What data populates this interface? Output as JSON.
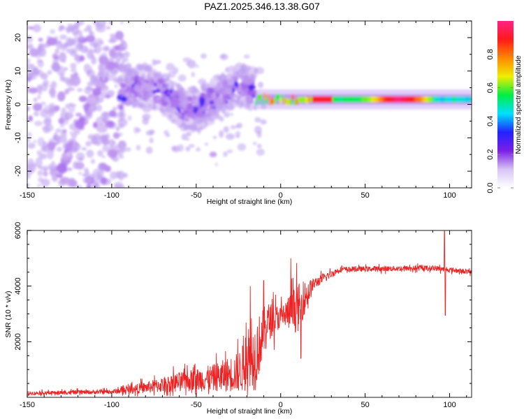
{
  "title": "PAZ1.2025.346.13.38.G07",
  "chart_data": [
    {
      "type": "heatmap",
      "name": "spectrogram",
      "xlabel": "Height of straight line (km)",
      "ylabel": "Frequency (Hz)",
      "xlim": [
        -150,
        113
      ],
      "ylim": [
        -25,
        25
      ],
      "x_ticks": [
        -150,
        -100,
        -50,
        0,
        50,
        100
      ],
      "y_ticks": [
        -20,
        -10,
        0,
        10,
        20
      ],
      "colorbar": {
        "label": "Normalized spectral amplitude",
        "range": [
          0,
          1
        ],
        "ticks": [
          0.0,
          0.2,
          0.4,
          0.6,
          0.8
        ],
        "tick_labels": [
          "0.0",
          "0.2",
          "0.4",
          "0.6",
          "0.8"
        ],
        "colormap": [
          "#ffffff",
          "#d8c4f4",
          "#7b1fe6",
          "#2222ff",
          "#00e0ff",
          "#00ee44",
          "#eeee00",
          "#ff8800",
          "#ff1a1a",
          "#ff2288"
        ]
      },
      "features": [
        {
          "description": "scattered low-amplitude blobs",
          "x_range": [
            -150,
            -95
          ],
          "freq_range": [
            -25,
            25
          ],
          "amplitude": 0.05
        },
        {
          "description": "diagonal trace",
          "x_start": -130,
          "freq_start": -22,
          "x_end": -100,
          "freq_end": 15,
          "amplitude": 0.15
        },
        {
          "description": "wavy broadband cluster",
          "x_range": [
            -95,
            -15
          ],
          "freq_range": [
            -5,
            8
          ],
          "amplitude": 0.25
        },
        {
          "description": "isolated blob",
          "x": -40,
          "freq": -16,
          "amplitude": 0.15
        },
        {
          "description": "narrow carrier line",
          "x_range": [
            -15,
            113
          ],
          "freq": 1.5,
          "amplitude_peak": 0.95
        }
      ]
    },
    {
      "type": "line",
      "name": "snr",
      "xlabel": "Height of straight line (km)",
      "ylabel": "SNR (10 * v/v)",
      "xlim": [
        -150,
        113
      ],
      "ylim": [
        0,
        6000
      ],
      "x_ticks": [
        -150,
        -100,
        -50,
        0,
        50,
        100
      ],
      "y_ticks": [
        2000,
        4000,
        6000
      ],
      "color": "#ee2222",
      "series_envelope": [
        {
          "x": -150,
          "mean": 150,
          "noise": 80
        },
        {
          "x": -100,
          "mean": 200,
          "noise": 100
        },
        {
          "x": -80,
          "mean": 350,
          "noise": 250
        },
        {
          "x": -60,
          "mean": 550,
          "noise": 450
        },
        {
          "x": -40,
          "mean": 700,
          "noise": 600
        },
        {
          "x": -25,
          "mean": 900,
          "noise": 900
        },
        {
          "x": -15,
          "mean": 1500,
          "noise": 1600
        },
        {
          "x": -8,
          "mean": 2700,
          "noise": 900
        },
        {
          "x": 0,
          "mean": 2900,
          "noise": 500
        },
        {
          "x": 10,
          "mean": 3200,
          "noise": 1100
        },
        {
          "x": 20,
          "mean": 4100,
          "noise": 250
        },
        {
          "x": 35,
          "mean": 4600,
          "noise": 120
        },
        {
          "x": 90,
          "mean": 4650,
          "noise": 120
        },
        {
          "x": 113,
          "mean": 4500,
          "noise": 100
        }
      ],
      "spikes": [
        {
          "x": 97,
          "y": 6000
        },
        {
          "x": 97.5,
          "y": 2950
        },
        {
          "x": 6,
          "y": 5000
        },
        {
          "x": 12,
          "y": 1400
        },
        {
          "x": -18,
          "y": 4000
        },
        {
          "x": -10,
          "y": 4200
        }
      ]
    }
  ]
}
